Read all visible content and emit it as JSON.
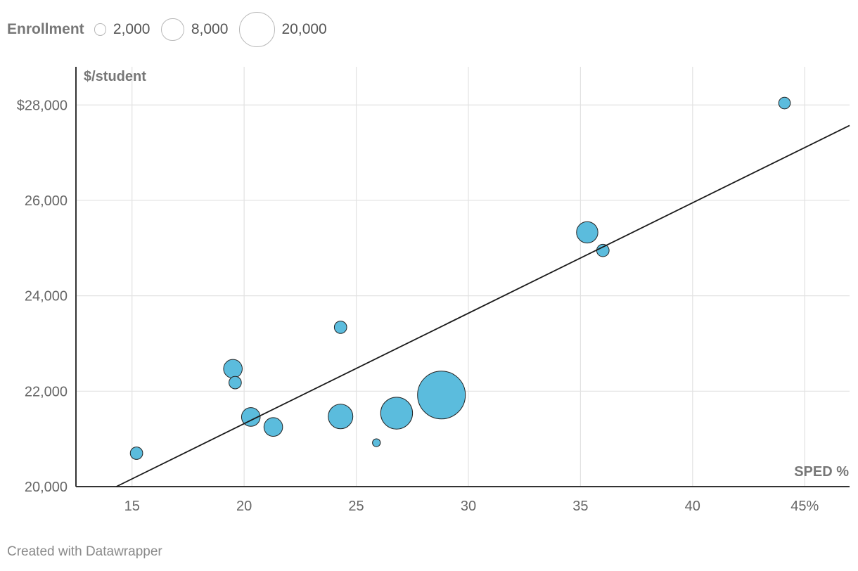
{
  "legend": {
    "title": "Enrollment",
    "items": [
      {
        "label": "2,000",
        "value": 2000
      },
      {
        "label": "8,000",
        "value": 8000
      },
      {
        "label": "20,000",
        "value": 20000
      }
    ]
  },
  "footer": {
    "credit": "Created with Datawrapper"
  },
  "chart_data": {
    "type": "scatter",
    "xlabel": "SPED %",
    "ylabel": "$/student",
    "xlim": [
      12.5,
      47
    ],
    "ylim": [
      20000,
      28800
    ],
    "x_ticks": [
      15,
      20,
      25,
      30,
      35,
      40,
      45
    ],
    "x_tick_labels": [
      "15",
      "20",
      "25",
      "30",
      "35",
      "40",
      "45%"
    ],
    "y_ticks": [
      20000,
      22000,
      24000,
      26000,
      28000
    ],
    "y_tick_labels": [
      "20,000",
      "22,000",
      "24,000",
      "26,000",
      "$28,000"
    ],
    "grid": true,
    "point_color": "#5bbcdd",
    "point_stroke": "#222222",
    "size_field": "enrollment",
    "points": [
      {
        "x": 15.2,
        "y": 20700,
        "enrollment": 2700
      },
      {
        "x": 19.5,
        "y": 22470,
        "enrollment": 6100
      },
      {
        "x": 19.6,
        "y": 22180,
        "enrollment": 2700
      },
      {
        "x": 20.3,
        "y": 21460,
        "enrollment": 6100
      },
      {
        "x": 21.3,
        "y": 21250,
        "enrollment": 6100
      },
      {
        "x": 24.3,
        "y": 23340,
        "enrollment": 2700
      },
      {
        "x": 24.3,
        "y": 21470,
        "enrollment": 10600
      },
      {
        "x": 25.9,
        "y": 20920,
        "enrollment": 1100
      },
      {
        "x": 26.8,
        "y": 21540,
        "enrollment": 17800
      },
      {
        "x": 28.8,
        "y": 21920,
        "enrollment": 40000
      },
      {
        "x": 35.3,
        "y": 25330,
        "enrollment": 8000
      },
      {
        "x": 36.0,
        "y": 24950,
        "enrollment": 2700
      },
      {
        "x": 44.1,
        "y": 28040,
        "enrollment": 2400
      }
    ],
    "trendline": {
      "x": [
        14.3,
        47
      ],
      "y": [
        20000,
        27570
      ]
    }
  }
}
